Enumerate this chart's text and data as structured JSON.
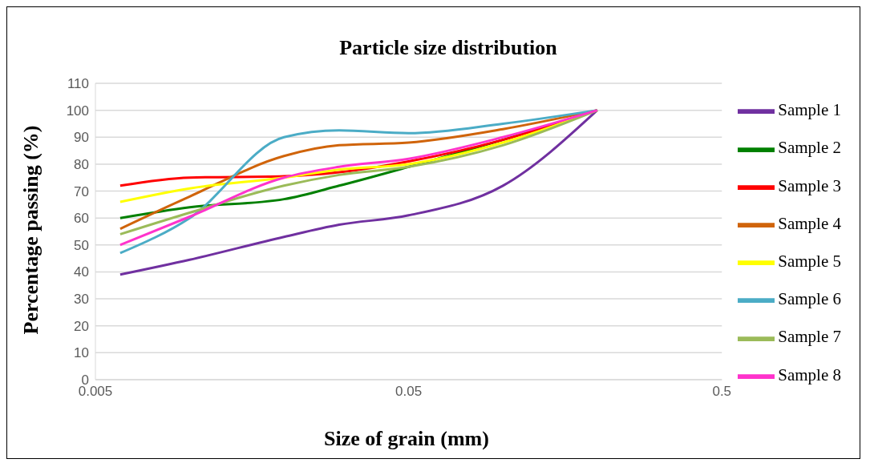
{
  "chart_data": {
    "type": "line",
    "title": "Particle size distribution",
    "xlabel": "Size of grain (mm)",
    "ylabel": "Percentage passing  (%)",
    "x": [
      0.006,
      0.01,
      0.02,
      0.03,
      0.05,
      0.1,
      0.2
    ],
    "series": [
      {
        "name": "Sample 1",
        "color": "#7030a0",
        "values": [
          39,
          44.5,
          53,
          57.5,
          61,
          72,
          100
        ]
      },
      {
        "name": "Sample 2",
        "color": "#008000",
        "values": [
          60,
          64,
          67,
          72,
          79,
          89,
          100
        ]
      },
      {
        "name": "Sample 3",
        "color": "#ff0000",
        "values": [
          72,
          75,
          75.5,
          77,
          81,
          89,
          100
        ]
      },
      {
        "name": "Sample 4",
        "color": "#d0640a",
        "values": [
          56,
          68,
          83,
          87,
          88,
          93,
          100
        ]
      },
      {
        "name": "Sample 5",
        "color": "#ffff00",
        "values": [
          66,
          71,
          75,
          78,
          80,
          88,
          100
        ]
      },
      {
        "name": "Sample 6",
        "color": "#4bacc6",
        "values": [
          47,
          60,
          90,
          92.5,
          91.5,
          95,
          100
        ]
      },
      {
        "name": "Sample 7",
        "color": "#9bbb59",
        "values": [
          54,
          62,
          72,
          76,
          79,
          87,
          100
        ]
      },
      {
        "name": "Sample 8",
        "color": "#ff33cc",
        "values": [
          50,
          60.5,
          75,
          79,
          82,
          90,
          100
        ]
      }
    ],
    "xlim": [
      0.005,
      0.5
    ],
    "xticks": [
      0.005,
      0.05,
      0.5
    ],
    "log": "x",
    "ylim": [
      0,
      110
    ],
    "yticks": [
      0,
      10,
      20,
      30,
      40,
      50,
      60,
      70,
      80,
      90,
      100,
      110
    ],
    "grid": "y",
    "legend": "right",
    "marker": "none",
    "line_style": "solid"
  }
}
